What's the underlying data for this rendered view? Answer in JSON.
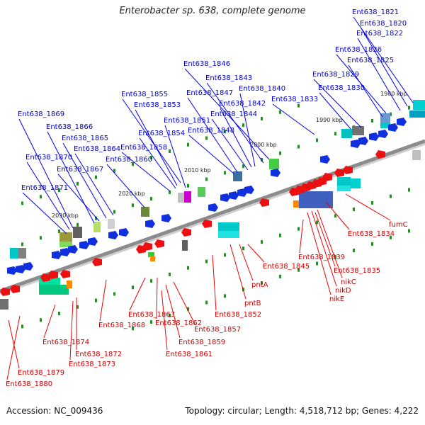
{
  "title": "Enterobacter sp. 638, complete genome",
  "footer": {
    "accession": "Accession: NC_009436",
    "topology": "Topology: circular; Length: 4,518,712 bp; Genes: 4,222"
  },
  "colors": {
    "forward_label": "#0000cc",
    "reverse_label": "#cc0000",
    "backbone": "#8c8c8c",
    "tick": "#2a8a2a"
  },
  "ruler": [
    "1980 kbp",
    "1990 kbp",
    "2000 kbp",
    "2010 kbp",
    "2020 kbp",
    "2030 kbp"
  ],
  "forward_genes": [
    "Ent638_1821",
    "Ent638_1820",
    "Ent638_1822",
    "Ent638_1826",
    "Ent638_1825",
    "Ent638_1829",
    "Ent638_1830",
    "Ent638_1846",
    "Ent638_1843",
    "Ent638_1840",
    "Ent638_1833",
    "Ent638_1847",
    "Ent638_1842",
    "Ent638_1844",
    "Ent638_1848",
    "Ent638_1855",
    "Ent638_1853",
    "Ent638_1851",
    "Ent638_1854",
    "Ent638_1858",
    "Ent638_1860",
    "Ent638_1869",
    "Ent638_1866",
    "Ent638_1865",
    "Ent638_1864",
    "Ent638_1870",
    "Ent638_1867",
    "Ent638_1871"
  ],
  "reverse_genes": [
    "fumC",
    "Ent638_1834",
    "Ent638_1839",
    "Ent638_1835",
    "nikC",
    "nikD",
    "nikE",
    "Ent638_1845",
    "pntA",
    "pntB",
    "Ent638_1852",
    "Ent638_1863",
    "Ent638_1862",
    "Ent638_1857",
    "Ent638_1868",
    "Ent638_1859",
    "Ent638_1861",
    "Ent638_1874",
    "Ent638_1872",
    "Ent638_1873",
    "Ent638_1879",
    "Ent638_1880"
  ]
}
